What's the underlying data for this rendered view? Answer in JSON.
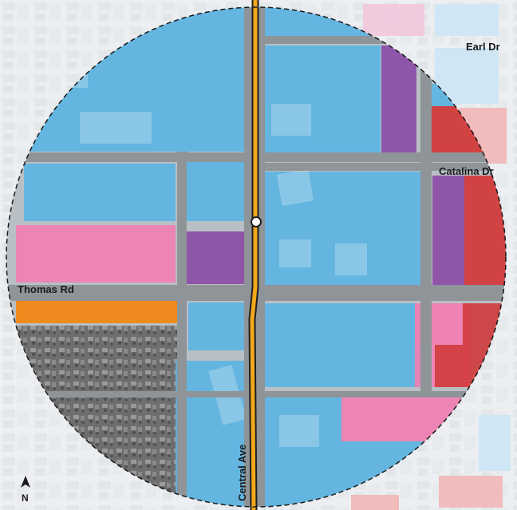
{
  "streets": {
    "earl": "Earl Dr",
    "catalina": "Catalina Dr",
    "thomas": "Thomas Rd",
    "central": "Central Ave"
  },
  "north_arrow": {
    "label": "N"
  },
  "colors": {
    "background_map": "#c7cdd2",
    "street": "#9aa0a4",
    "blue_zone": "#5cb4e2",
    "purple_zone": "#8c4fa8",
    "pink_zone": "#ee82b4",
    "red_zone": "#d23b3b",
    "orange_zone": "#ee8a1e",
    "residential": "#6d6d6d",
    "corridor_line": "#f3a81c"
  }
}
